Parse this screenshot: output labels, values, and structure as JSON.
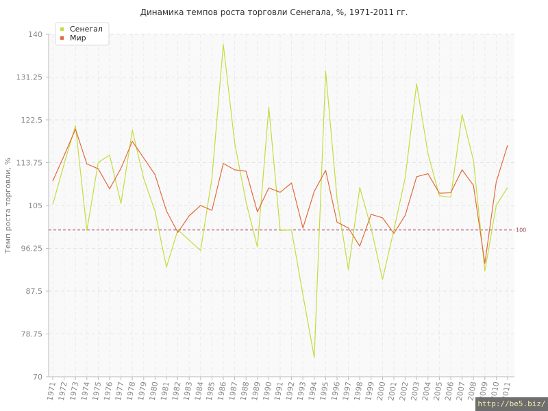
{
  "chart_data": {
    "type": "line",
    "title": "Динамика темпов роста торговли Сенегала, %, 1971-2011 гг.",
    "ylabel": "Темп роста торговли, %",
    "xlabel": "",
    "ylim": [
      70,
      140
    ],
    "yticks": [
      "70",
      "78.75",
      "87.5",
      "96.25",
      "105",
      "113.75",
      "122.5",
      "131.25",
      "140"
    ],
    "x": [
      "1971",
      "1972",
      "1973",
      "1974",
      "1975",
      "1976",
      "1977",
      "1978",
      "1979",
      "1980",
      "1981",
      "1982",
      "1983",
      "1984",
      "1985",
      "1986",
      "1987",
      "1988",
      "1989",
      "1990",
      "1991",
      "1992",
      "1993",
      "1994",
      "1995",
      "1996",
      "1997",
      "1998",
      "1999",
      "2000",
      "2001",
      "2002",
      "2003",
      "2004",
      "2005",
      "2006",
      "2007",
      "2008",
      "2009",
      "2010",
      "2011"
    ],
    "series": [
      {
        "name": "Сенегал",
        "color": "#c4dc3c",
        "values": [
          105.2,
          113.5,
          121.3,
          99.9,
          113.8,
          115.3,
          105.4,
          120.4,
          110.5,
          103.8,
          92.4,
          100.0,
          97.9,
          95.8,
          110.6,
          137.9,
          117.8,
          105.7,
          96.5,
          125.1,
          99.9,
          100.0,
          86.8,
          73.9,
          132.5,
          106.4,
          91.9,
          108.7,
          100.4,
          89.9,
          100.0,
          110.7,
          129.9,
          115.6,
          107.0,
          106.7,
          123.6,
          114.2,
          91.6,
          105.0,
          108.7
        ]
      },
      {
        "name": "Мир",
        "color": "#e06a3a",
        "values": [
          110.0,
          115.2,
          120.6,
          113.5,
          112.5,
          108.4,
          112.6,
          118.1,
          114.7,
          111.3,
          103.9,
          99.5,
          102.9,
          105.0,
          104.0,
          113.6,
          112.3,
          112.0,
          103.7,
          108.6,
          107.7,
          109.6,
          100.4,
          107.9,
          112.2,
          101.6,
          100.4,
          96.7,
          103.2,
          102.5,
          99.3,
          103.0,
          110.9,
          111.5,
          107.5,
          107.6,
          112.3,
          109.1,
          93.2,
          109.8,
          117.3
        ]
      }
    ],
    "reference_line": {
      "value": 100,
      "label": "100",
      "color": "#a0405a"
    },
    "grid": true,
    "legend": "top-left"
  },
  "watermark": "http://be5.biz/"
}
